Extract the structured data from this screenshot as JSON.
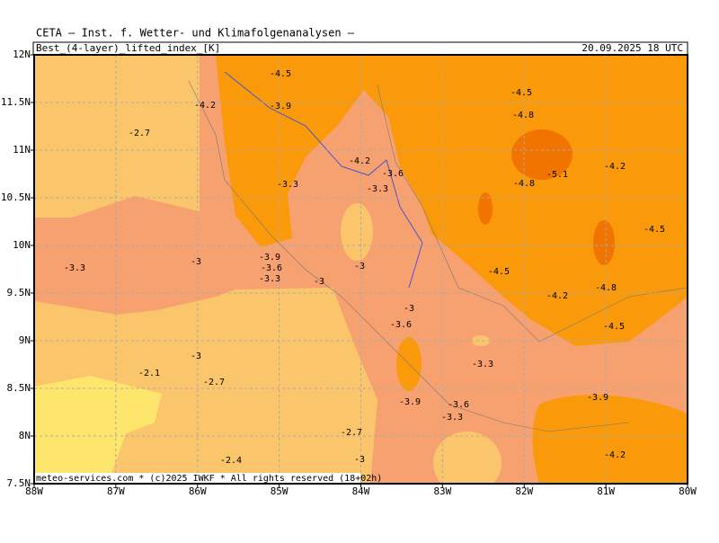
{
  "header": {
    "title": "CETA — Inst. f. Wetter- und Klimafolgenanalysen —",
    "parameter": "Best_(4-layer)_lifted_index_[K]",
    "valid_time": "20.09.2025 18 UTC"
  },
  "map": {
    "lat_labels": [
      "12N",
      "11.5N",
      "11N",
      "10.5N",
      "10N",
      "9.5N",
      "9N",
      "8.5N",
      "8N",
      "7.5N"
    ],
    "lon_labels": [
      "88W",
      "87W",
      "86W",
      "85W",
      "84W",
      "83W",
      "82W",
      "81W",
      "80W"
    ],
    "contour_labels": [
      "-4.5",
      "-4.2",
      "-3.9",
      "-2.7",
      "-4.5",
      "-4.8",
      "-4.2",
      "-3.6",
      "-5.1",
      "-4.2",
      "-3.3",
      "-3.3",
      "-4.8",
      "-4.5",
      "-3.3",
      "-3",
      "-3.9",
      "-3.6",
      "-3.3",
      "-3",
      "-3",
      "-4.5",
      "-4.2",
      "-4.8",
      "-3",
      "-3.6",
      "-4.5",
      "-3",
      "-3.3",
      "-2.1",
      "-2.7",
      "-3.9",
      "-3.6",
      "-3.9",
      "-3.3",
      "-2.7",
      "-2.4",
      "-3",
      "-4.2"
    ]
  },
  "footer": "meteo-services.com * (c)2025 IWKF * All rights reserved (18+02h)"
}
